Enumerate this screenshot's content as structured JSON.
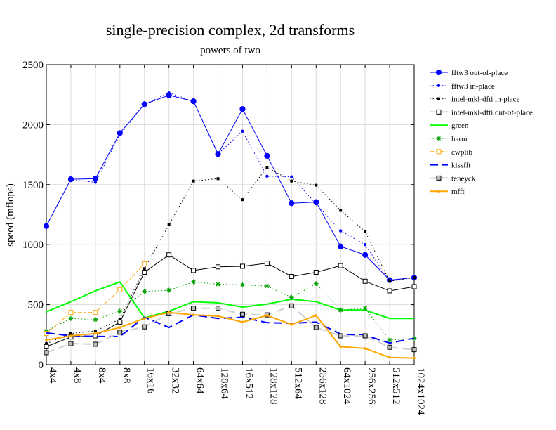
{
  "chart_data": {
    "type": "line",
    "title": "single-precision complex, 2d transforms",
    "subtitle": "powers of two",
    "xlabel": "",
    "ylabel": "speed (mflops)",
    "ylim": [
      0,
      2500
    ],
    "yticks": [
      0,
      500,
      1000,
      1500,
      2000,
      2500
    ],
    "grid": true,
    "legend": "right",
    "categories": [
      "4x4",
      "4x8",
      "8x4",
      "8x8",
      "16x16",
      "32x32",
      "64x64",
      "128x64",
      "16x512",
      "128x128",
      "512x64",
      "256x128",
      "64x1024",
      "256x256",
      "512x512",
      "1024x1024"
    ],
    "series": [
      {
        "name": "fftw3 out-of-place",
        "color": "#0000ff",
        "dash": "",
        "width": 1,
        "marker": "circle",
        "values": [
          1155,
          1545,
          1550,
          1930,
          2170,
          2245,
          2195,
          1755,
          2130,
          1740,
          1345,
          1355,
          985,
          915,
          705,
          725
        ]
      },
      {
        "name": "fftw3 in-place",
        "color": "#0000ff",
        "dash": "1.5,3",
        "width": 1,
        "marker": "smalldot",
        "values": [
          1160,
          1540,
          1520,
          1915,
          2170,
          2265,
          2195,
          1755,
          1945,
          1570,
          1565,
          1340,
          1115,
          1000,
          695,
          730
        ]
      },
      {
        "name": "intel-mkl-dfti in-place",
        "color": "#000000",
        "dash": "1.5,3",
        "width": 1,
        "marker": "smallsquare",
        "values": [
          175,
          260,
          280,
          380,
          800,
          1165,
          1530,
          1550,
          1375,
          1645,
          1530,
          1495,
          1285,
          1110,
          695,
          725
        ]
      },
      {
        "name": "intel-mkl-dfti out-of-place",
        "color": "#000000",
        "dash": "",
        "width": 1,
        "marker": "square",
        "values": [
          150,
          230,
          240,
          355,
          770,
          915,
          785,
          815,
          820,
          845,
          735,
          770,
          825,
          695,
          615,
          650
        ]
      },
      {
        "name": "green",
        "color": "#00ff00",
        "dash": "",
        "width": 2,
        "marker": "none",
        "values": [
          440,
          525,
          615,
          690,
          390,
          445,
          525,
          515,
          480,
          505,
          545,
          525,
          455,
          455,
          385,
          385
        ]
      },
      {
        "name": "harm",
        "color": "#00a000",
        "dash": "1.5,3",
        "width": 1,
        "marker": "star",
        "values": [
          280,
          385,
          375,
          445,
          610,
          620,
          690,
          670,
          665,
          655,
          560,
          675,
          455,
          470,
          205,
          220
        ]
      },
      {
        "name": "cwplib",
        "color": "#ffa500",
        "dash": "6,3,2,3",
        "width": 1,
        "marker": "square",
        "values": [
          260,
          435,
          435,
          625,
          840,
          null,
          null,
          null,
          null,
          null,
          null,
          null,
          null,
          null,
          null,
          null
        ]
      },
      {
        "name": "kissfft",
        "color": "#0000ff",
        "dash": "12,6",
        "width": 2,
        "marker": "none",
        "values": [
          265,
          240,
          235,
          235,
          395,
          310,
          415,
          385,
          395,
          350,
          345,
          355,
          255,
          245,
          180,
          220
        ]
      },
      {
        "name": "teneyck",
        "color": "#d0d0d0",
        "dash": "12,6",
        "width": 2,
        "marker": "graysquare",
        "values": [
          100,
          175,
          170,
          270,
          315,
          425,
          470,
          470,
          420,
          415,
          490,
          310,
          240,
          240,
          145,
          125
        ]
      },
      {
        "name": "mfft",
        "color": "#ffa500",
        "dash": "",
        "width": 2,
        "marker": "smalldotorange",
        "values": [
          205,
          240,
          260,
          310,
          385,
          435,
          415,
          405,
          355,
          410,
          335,
          410,
          150,
          135,
          60,
          55
        ]
      }
    ]
  }
}
